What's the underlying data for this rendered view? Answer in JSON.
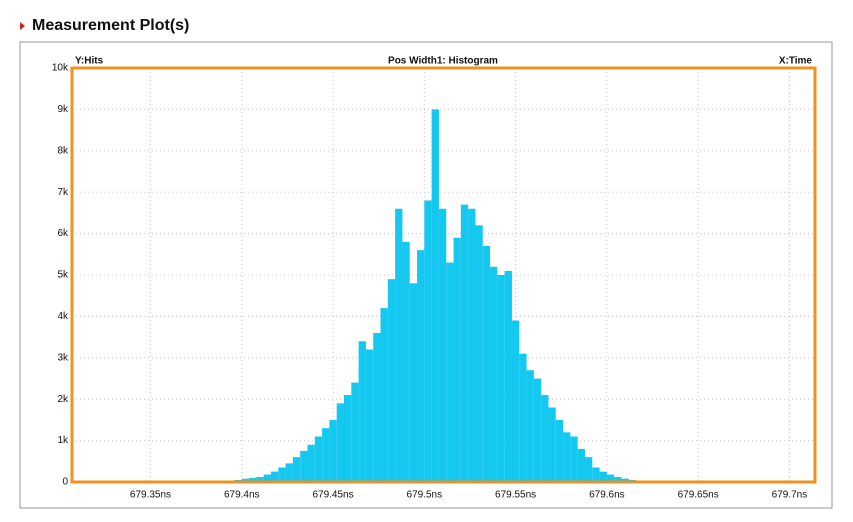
{
  "header": "Measurement Plot(s)",
  "chart_data": {
    "type": "histogram",
    "title": "Pos Width1: Histogram",
    "y_label": "Y:Hits",
    "x_label": "X:Time",
    "color": "#14c8f0",
    "frame_color": "#f0901e",
    "grid": true,
    "bins": [
      679.396,
      679.4,
      679.404,
      679.408,
      679.412,
      679.416,
      679.42,
      679.424,
      679.428,
      679.432,
      679.436,
      679.44,
      679.444,
      679.448,
      679.452,
      679.456,
      679.46,
      679.464,
      679.468,
      679.472,
      679.476,
      679.48,
      679.484,
      679.488,
      679.492,
      679.496,
      679.5,
      679.504,
      679.508,
      679.512,
      679.516,
      679.52,
      679.524,
      679.528,
      679.532,
      679.536,
      679.54,
      679.544,
      679.548,
      679.552,
      679.556,
      679.56,
      679.564,
      679.568,
      679.572,
      679.576,
      679.58,
      679.584,
      679.588,
      679.592,
      679.596,
      679.6,
      679.604,
      679.608,
      679.612,
      679.616,
      679.62,
      679.624,
      679.628,
      679.632
    ],
    "values": [
      50,
      80,
      100,
      120,
      180,
      250,
      350,
      450,
      600,
      750,
      900,
      1100,
      1300,
      1500,
      1900,
      2100,
      2400,
      3400,
      3200,
      3600,
      4200,
      4900,
      6600,
      5800,
      4800,
      5600,
      6800,
      9000,
      6600,
      5300,
      5900,
      6700,
      6600,
      6200,
      5700,
      5200,
      5000,
      5100,
      3900,
      3100,
      2700,
      2500,
      2100,
      1800,
      1500,
      1200,
      1100,
      800,
      600,
      350,
      250,
      180,
      120,
      80,
      50,
      30,
      20,
      15,
      10
    ],
    "xlim": [
      679.307,
      679.714
    ],
    "ylim": [
      0,
      10000
    ],
    "xticks": [
      {
        "value": 679.35,
        "label": "679.35ns"
      },
      {
        "value": 679.4,
        "label": "679.4ns"
      },
      {
        "value": 679.45,
        "label": "679.45ns"
      },
      {
        "value": 679.5,
        "label": "679.5ns"
      },
      {
        "value": 679.55,
        "label": "679.55ns"
      },
      {
        "value": 679.6,
        "label": "679.6ns"
      },
      {
        "value": 679.65,
        "label": "679.65ns"
      },
      {
        "value": 679.7,
        "label": "679.7ns"
      }
    ],
    "yticks": [
      0,
      {
        "value": 1000,
        "label": "1k"
      },
      {
        "value": 2000,
        "label": "2k"
      },
      {
        "value": 3000,
        "label": "3k"
      },
      {
        "value": 4000,
        "label": "4k"
      },
      {
        "value": 5000,
        "label": "5k"
      },
      {
        "value": 6000,
        "label": "6k"
      },
      {
        "value": 7000,
        "label": "7k"
      },
      {
        "value": 8000,
        "label": "8k"
      },
      {
        "value": 9000,
        "label": "9k"
      },
      {
        "value": 10000,
        "label": "10k"
      }
    ]
  }
}
